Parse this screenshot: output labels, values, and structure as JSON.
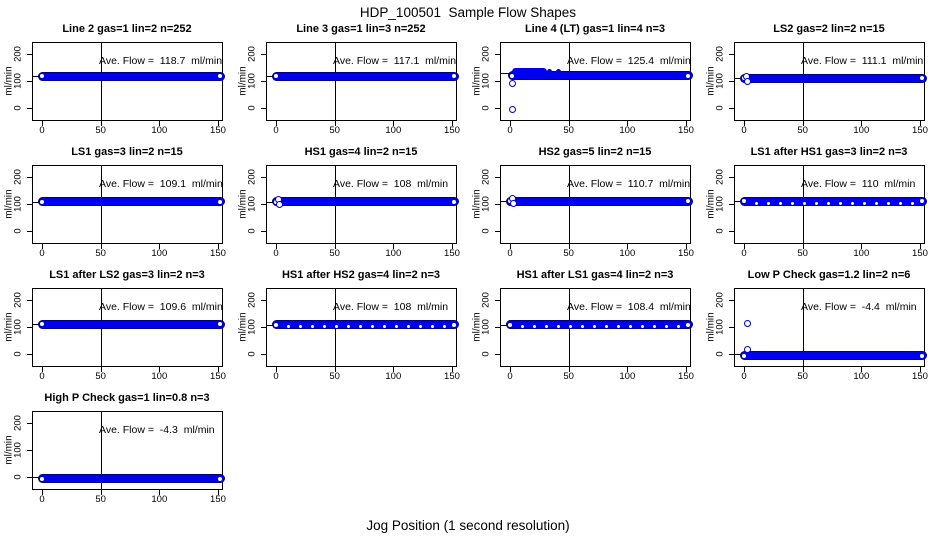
{
  "figure": {
    "title": "HDP_100501  Sample Flow Shapes",
    "xlabel": "Jog Position (1 second resolution)",
    "ylabel": "ml/min"
  },
  "axes": {
    "x_ticks": [
      "0",
      "50",
      "100",
      "150"
    ],
    "x_tick_values": [
      0,
      50,
      100,
      150
    ],
    "y_ticks": [
      "0",
      "100",
      "200"
    ],
    "y_tick_values": [
      0,
      100,
      200
    ],
    "vline_x": 50,
    "xlim": [
      -8,
      156
    ],
    "ylim": [
      -48,
      244
    ],
    "grid": false
  },
  "colors": {
    "point_blue": "#0000EE",
    "band_edge_navy": "#000080",
    "axis_black": "#000000",
    "background": "#ffffff"
  },
  "chart_data": [
    {
      "type": "scatter",
      "title": "Line 2 gas=1 lin=2 n=252",
      "ave_label": "Ave. Flow =  118.7  ml/min",
      "ave_flow": 118.7,
      "band": {
        "y": 118,
        "x1": 0,
        "x2": 152
      },
      "ref_y": 118.7,
      "open_points": [],
      "filled_points": [],
      "extra_band": null,
      "white_dots": false
    },
    {
      "type": "scatter",
      "title": "Line 3 gas=1 lin=3 n=252",
      "ave_label": "Ave. Flow =  117.1  ml/min",
      "ave_flow": 117.1,
      "band": {
        "y": 117,
        "x1": 0,
        "x2": 152
      },
      "ref_y": 117.1,
      "open_points": [],
      "filled_points": [],
      "extra_band": null,
      "white_dots": false
    },
    {
      "type": "scatter",
      "title": "Line 4 (LT) gas=1 lin=4 n=3",
      "ave_label": "Ave. Flow =  125.4  ml/min",
      "ave_flow": 125.4,
      "band": {
        "y": 119,
        "x1": 2,
        "x2": 152
      },
      "ref_y": 128,
      "open_points": [
        [
          2,
          -6
        ],
        [
          2,
          90
        ]
      ],
      "filled_points": [
        [
          34,
          137
        ],
        [
          41,
          136
        ]
      ],
      "extra_band": {
        "y": 137,
        "x1": 4,
        "x2": 29
      },
      "white_dots": false
    },
    {
      "type": "scatter",
      "title": "LS2 gas=2 lin=2 n=15",
      "ave_label": "Ave. Flow =  111.1  ml/min",
      "ave_flow": 111.1,
      "band": {
        "y": 110,
        "x1": 0,
        "x2": 152
      },
      "ref_y": 111.1,
      "open_points": [
        [
          2,
          116
        ],
        [
          3,
          100
        ]
      ],
      "filled_points": [],
      "extra_band": null,
      "white_dots": false
    },
    {
      "type": "scatter",
      "title": "LS1 gas=3 lin=2 n=15",
      "ave_label": "Ave. Flow =  109.1  ml/min",
      "ave_flow": 109.1,
      "band": {
        "y": 109,
        "x1": 0,
        "x2": 152
      },
      "ref_y": 109.1,
      "open_points": [],
      "filled_points": [],
      "extra_band": null,
      "white_dots": false
    },
    {
      "type": "scatter",
      "title": "HS1 gas=4 lin=2 n=15",
      "ave_label": "Ave. Flow =  108  ml/min",
      "ave_flow": 108,
      "band": {
        "y": 108,
        "x1": 0,
        "x2": 152
      },
      "ref_y": 108,
      "open_points": [
        [
          2,
          118
        ],
        [
          3,
          99
        ]
      ],
      "filled_points": [],
      "extra_band": null,
      "white_dots": false
    },
    {
      "type": "scatter",
      "title": "HS2 gas=5 lin=2 n=15",
      "ave_label": "Ave. Flow =  110.7  ml/min",
      "ave_flow": 110.7,
      "band": {
        "y": 110,
        "x1": 0,
        "x2": 152
      },
      "ref_y": 110.7,
      "open_points": [
        [
          2,
          121
        ],
        [
          3,
          102
        ]
      ],
      "filled_points": [],
      "extra_band": null,
      "white_dots": false
    },
    {
      "type": "scatter",
      "title": "LS1 after HS1 gas=3 lin=2 n=3",
      "ave_label": "Ave. Flow =  110  ml/min",
      "ave_flow": 110,
      "band": {
        "y": 110,
        "x1": 0,
        "x2": 152
      },
      "ref_y": 110,
      "open_points": [],
      "filled_points": [],
      "extra_band": null,
      "white_dots": true
    },
    {
      "type": "scatter",
      "title": "LS1 after LS2 gas=3 lin=2 n=3",
      "ave_label": "Ave. Flow =  109.6  ml/min",
      "ave_flow": 109.6,
      "band": {
        "y": 110,
        "x1": 0,
        "x2": 152
      },
      "ref_y": 109.6,
      "open_points": [],
      "filled_points": [],
      "extra_band": null,
      "white_dots": false
    },
    {
      "type": "scatter",
      "title": "HS1 after HS2 gas=4 lin=2 n=3",
      "ave_label": "Ave. Flow =  108  ml/min",
      "ave_flow": 108,
      "band": {
        "y": 108,
        "x1": 0,
        "x2": 152
      },
      "ref_y": 108,
      "open_points": [],
      "filled_points": [],
      "extra_band": null,
      "white_dots": true
    },
    {
      "type": "scatter",
      "title": "HS1 after LS1 gas=4 lin=2 n=3",
      "ave_label": "Ave. Flow =  108.4  ml/min",
      "ave_flow": 108.4,
      "band": {
        "y": 108,
        "x1": 0,
        "x2": 152
      },
      "ref_y": 108.4,
      "open_points": [],
      "filled_points": [],
      "extra_band": null,
      "white_dots": true
    },
    {
      "type": "scatter",
      "title": "Low P Check gas=1.2 lin=2 n=6",
      "ave_label": "Ave. Flow =  -4.4  ml/min",
      "ave_flow": -4.4,
      "band": {
        "y": -6,
        "x1": 0,
        "x2": 152
      },
      "ref_y": 1,
      "open_points": [
        [
          3,
          112
        ],
        [
          3,
          18
        ]
      ],
      "filled_points": [],
      "extra_band": null,
      "white_dots": false
    },
    {
      "type": "scatter",
      "title": "High P Check gas=1 lin=0.8 n=3",
      "ave_label": "Ave. Flow =  -4.3  ml/min",
      "ave_flow": -4.3,
      "band": {
        "y": -6,
        "x1": 0,
        "x2": 152
      },
      "ref_y": 1,
      "open_points": [],
      "filled_points": [],
      "extra_band": null,
      "white_dots": false
    }
  ]
}
